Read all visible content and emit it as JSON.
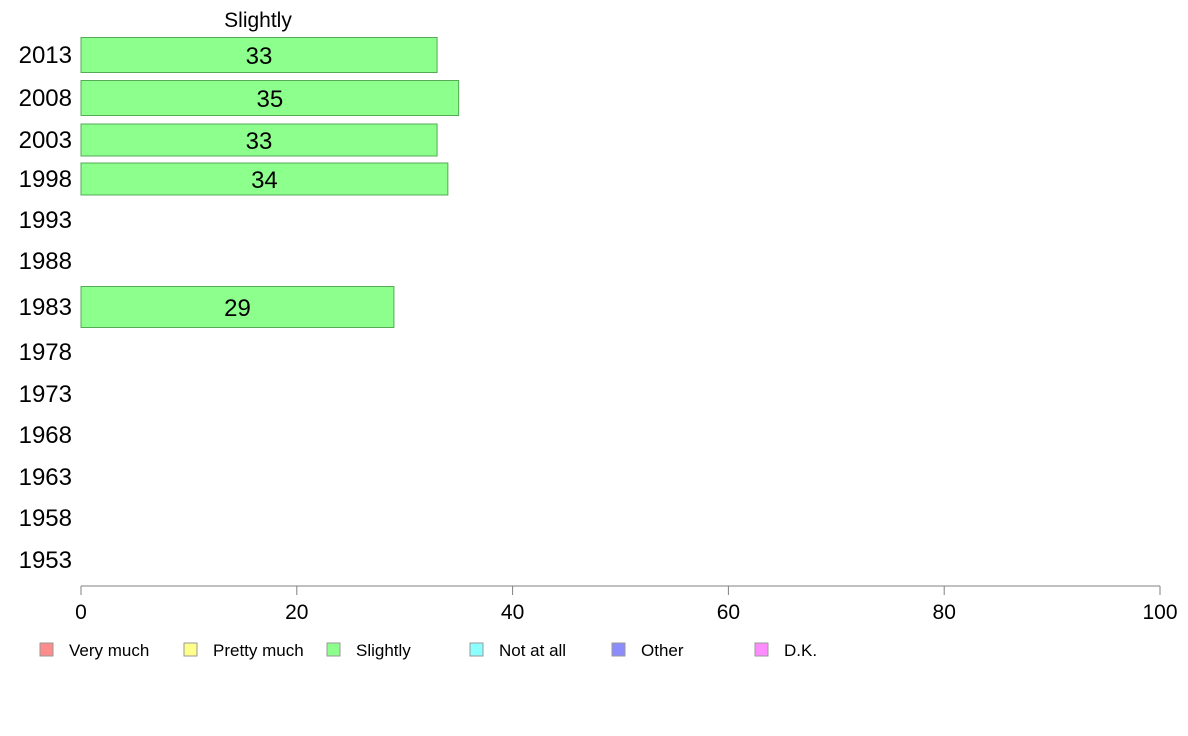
{
  "chart_data": {
    "type": "bar",
    "orientation": "horizontal",
    "panel_title": "Slightly",
    "categories": [
      "2013",
      "2008",
      "2003",
      "1998",
      "1993",
      "1988",
      "1983",
      "1978",
      "1973",
      "1968",
      "1963",
      "1958",
      "1953"
    ],
    "series": [
      {
        "name": "Slightly",
        "values": [
          33,
          35,
          33,
          34,
          null,
          null,
          29,
          null,
          null,
          null,
          null,
          null,
          null
        ]
      }
    ],
    "data_labels": [
      "33",
      "35",
      "33",
      "34",
      "",
      "",
      "29",
      "",
      "",
      "",
      "",
      "",
      ""
    ],
    "xlim": [
      0,
      100
    ],
    "xticks": [
      0,
      20,
      40,
      60,
      80,
      100
    ],
    "grid": false,
    "legend_position": "bottom-left",
    "legend": [
      {
        "label": "Very much",
        "color": "#ff8c8c"
      },
      {
        "label": "Pretty much",
        "color": "#ffff8c"
      },
      {
        "label": "Slightly",
        "color": "#8cff8c"
      },
      {
        "label": "Not at all",
        "color": "#8cffff"
      },
      {
        "label": "Other",
        "color": "#8c8cff"
      },
      {
        "label": "D.K.",
        "color": "#ff8cff"
      }
    ],
    "bar_color": "#8cff8c",
    "bar_border_color": "#55aa55"
  }
}
